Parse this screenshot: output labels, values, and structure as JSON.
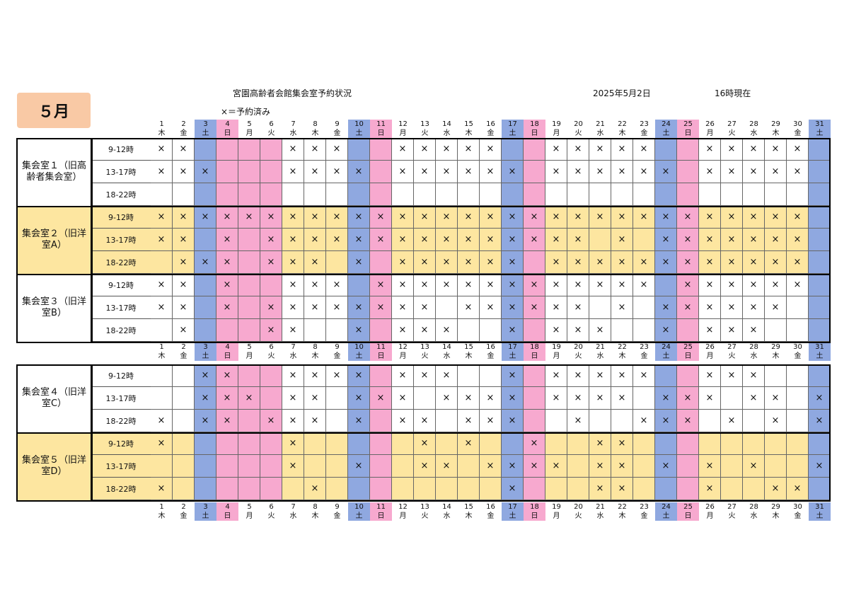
{
  "month": "５月",
  "title": "宮園高齢者会館集会室予約状況",
  "legend": "×＝予約済み",
  "date": "2025年5月2日",
  "as_of": "16時現在",
  "mark": "×",
  "colors": {
    "weekday": "#ffffff",
    "saturday": "#8fa8e0",
    "sunday": "#f7a9cf",
    "band": "#fde6a0",
    "header_sat": "#8fa8e0",
    "header_sun": "#f7a9cf"
  },
  "days": [
    {
      "d": "1",
      "w": "木"
    },
    {
      "d": "2",
      "w": "金"
    },
    {
      "d": "3",
      "w": "土"
    },
    {
      "d": "4",
      "w": "日"
    },
    {
      "d": "5",
      "w": "月"
    },
    {
      "d": "6",
      "w": "火"
    },
    {
      "d": "7",
      "w": "水"
    },
    {
      "d": "8",
      "w": "木"
    },
    {
      "d": "9",
      "w": "金"
    },
    {
      "d": "10",
      "w": "土"
    },
    {
      "d": "11",
      "w": "日"
    },
    {
      "d": "12",
      "w": "月"
    },
    {
      "d": "13",
      "w": "火"
    },
    {
      "d": "14",
      "w": "水"
    },
    {
      "d": "15",
      "w": "木"
    },
    {
      "d": "16",
      "w": "金"
    },
    {
      "d": "17",
      "w": "土"
    },
    {
      "d": "18",
      "w": "日"
    },
    {
      "d": "19",
      "w": "月"
    },
    {
      "d": "20",
      "w": "火"
    },
    {
      "d": "21",
      "w": "水"
    },
    {
      "d": "22",
      "w": "木"
    },
    {
      "d": "23",
      "w": "金"
    },
    {
      "d": "24",
      "w": "土"
    },
    {
      "d": "25",
      "w": "日"
    },
    {
      "d": "26",
      "w": "月"
    },
    {
      "d": "27",
      "w": "火"
    },
    {
      "d": "28",
      "w": "水"
    },
    {
      "d": "29",
      "w": "木"
    },
    {
      "d": "30",
      "w": "金"
    },
    {
      "d": "31",
      "w": "土"
    }
  ],
  "holidays": [
    "4",
    "5",
    "6"
  ],
  "rooms": [
    {
      "name": "集会室１（旧高齢者集会室）",
      "band": false,
      "slots": [
        {
          "label": "9-12時",
          "booked": [
            1,
            2,
            7,
            8,
            9,
            12,
            13,
            14,
            15,
            16,
            19,
            20,
            21,
            22,
            23,
            26,
            27,
            28,
            29,
            30
          ]
        },
        {
          "label": "13-17時",
          "booked": [
            1,
            2,
            3,
            7,
            8,
            9,
            10,
            12,
            13,
            14,
            15,
            16,
            17,
            19,
            20,
            21,
            22,
            23,
            24,
            26,
            27,
            28,
            29,
            30
          ]
        },
        {
          "label": "18-22時",
          "booked": []
        }
      ]
    },
    {
      "name": "集会室２（旧洋室A）",
      "band": true,
      "slots": [
        {
          "label": "9-12時",
          "booked": [
            1,
            2,
            3,
            4,
            5,
            6,
            7,
            8,
            9,
            10,
            11,
            12,
            13,
            14,
            15,
            16,
            17,
            18,
            19,
            20,
            21,
            22,
            23,
            24,
            25,
            26,
            27,
            28,
            29,
            30
          ]
        },
        {
          "label": "13-17時",
          "booked": [
            1,
            2,
            4,
            6,
            7,
            8,
            9,
            10,
            11,
            12,
            13,
            14,
            15,
            16,
            17,
            18,
            19,
            20,
            22,
            24,
            25,
            26,
            27,
            28,
            29,
            30
          ]
        },
        {
          "label": "18-22時",
          "booked": [
            2,
            3,
            4,
            6,
            7,
            8,
            10,
            12,
            13,
            14,
            15,
            16,
            17,
            19,
            20,
            21,
            22,
            23,
            24,
            25,
            26,
            27,
            28,
            29,
            30
          ]
        }
      ]
    },
    {
      "name": "集会室３（旧洋室B）",
      "band": false,
      "slots": [
        {
          "label": "9-12時",
          "booked": [
            1,
            2,
            4,
            7,
            8,
            9,
            11,
            12,
            13,
            14,
            15,
            16,
            17,
            18,
            19,
            20,
            21,
            22,
            23,
            25,
            26,
            27,
            28,
            29,
            30
          ]
        },
        {
          "label": "13-17時",
          "booked": [
            1,
            2,
            4,
            6,
            7,
            8,
            9,
            10,
            11,
            12,
            13,
            15,
            16,
            17,
            18,
            19,
            20,
            22,
            24,
            25,
            26,
            27,
            28,
            29
          ]
        },
        {
          "label": "18-22時",
          "booked": [
            2,
            6,
            7,
            10,
            12,
            13,
            14,
            17,
            19,
            20,
            21,
            24,
            26,
            27,
            28
          ]
        }
      ]
    },
    {
      "name": "集会室４（旧洋室C）",
      "band": false,
      "slots": [
        {
          "label": "9-12時",
          "booked": [
            3,
            4,
            7,
            8,
            9,
            10,
            12,
            13,
            14,
            17,
            19,
            20,
            21,
            22,
            23,
            26,
            27,
            28
          ]
        },
        {
          "label": "13-17時",
          "booked": [
            3,
            4,
            5,
            7,
            8,
            10,
            11,
            12,
            14,
            15,
            16,
            17,
            19,
            20,
            21,
            22,
            24,
            25,
            26,
            28,
            29,
            31
          ]
        },
        {
          "label": "18-22時",
          "booked": [
            1,
            3,
            4,
            6,
            7,
            8,
            10,
            12,
            13,
            15,
            16,
            17,
            20,
            23,
            24,
            25,
            27,
            29,
            31
          ]
        }
      ]
    },
    {
      "name": "集会室５（旧洋室D）",
      "band": true,
      "slots": [
        {
          "label": "9-12時",
          "booked": [
            1,
            7,
            13,
            15,
            18,
            21,
            22
          ]
        },
        {
          "label": "13-17時",
          "booked": [
            7,
            10,
            13,
            14,
            16,
            17,
            18,
            19,
            21,
            22,
            24,
            26,
            28,
            31
          ]
        },
        {
          "label": "18-22時",
          "booked": [
            1,
            8,
            17,
            21,
            22,
            26,
            29,
            30
          ]
        }
      ]
    }
  ]
}
